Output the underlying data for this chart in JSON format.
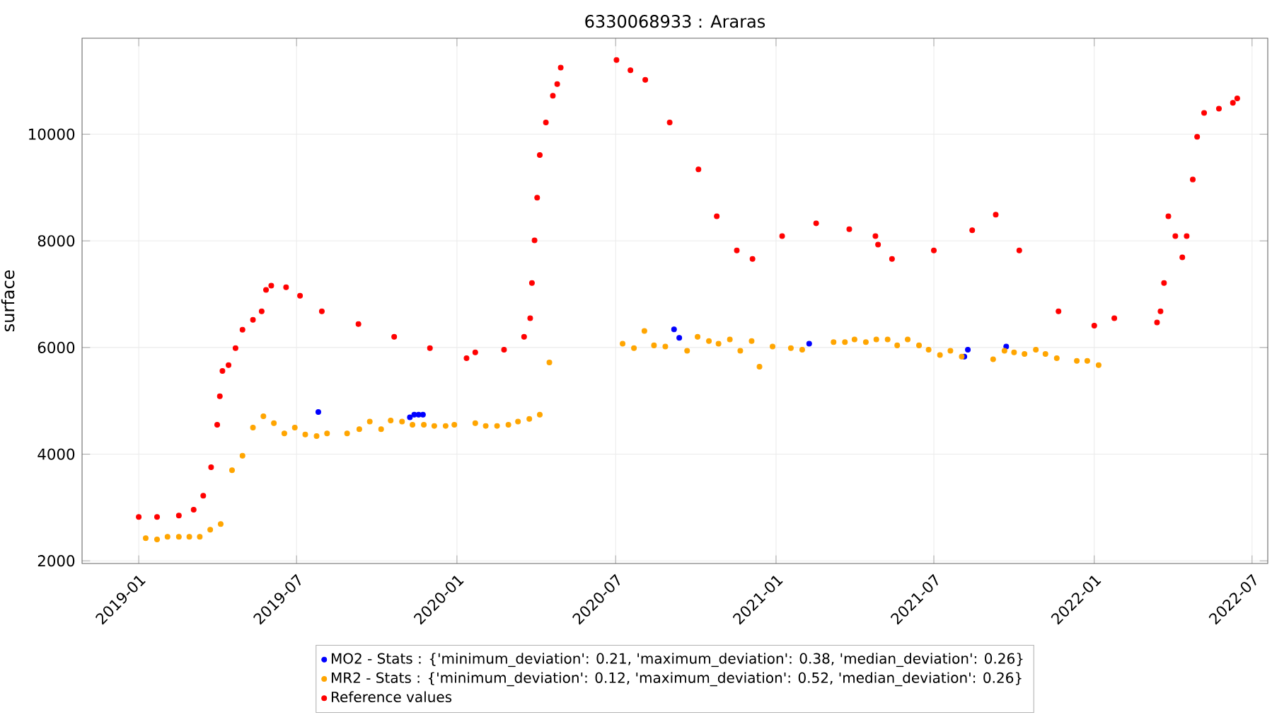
{
  "chart_data": {
    "type": "scatter",
    "title": "6330068933 : Araras",
    "ylabel": "surface",
    "xlim": [
      "2018-10-28",
      "2022-07-19"
    ],
    "ylim": [
      1950,
      11800
    ],
    "xticks": [
      "2019-01",
      "2019-07",
      "2020-01",
      "2020-07",
      "2021-01",
      "2021-07",
      "2022-01",
      "2022-07"
    ],
    "yticks": [
      2000,
      4000,
      6000,
      8000,
      10000
    ],
    "grid": true,
    "legend": "bottom",
    "marker": "circle",
    "series": [
      {
        "name": "MO2 - Stats : {'minimum_deviation': 0.21, 'maximum_deviation': 0.38, 'median_deviation': 0.26}",
        "color": "#0000ff",
        "x": [
          "2019-07-26",
          "2019-11-08",
          "2019-11-13",
          "2019-11-18",
          "2019-11-23",
          "2020-09-06",
          "2020-09-12",
          "2021-02-08",
          "2021-08-05",
          "2021-08-09",
          "2021-09-22"
        ],
        "values": [
          4790,
          4690,
          4740,
          4740,
          4740,
          6340,
          6180,
          6070,
          5830,
          5960,
          6020
        ]
      },
      {
        "name": "MR2 - Stats : {'minimum_deviation': 0.12, 'maximum_deviation': 0.52, 'median_deviation': 0.26}",
        "color": "#ffa500",
        "x": [
          "2019-01-09",
          "2019-01-22",
          "2019-02-03",
          "2019-02-16",
          "2019-02-28",
          "2019-03-12",
          "2019-03-24",
          "2019-04-05",
          "2019-04-18",
          "2019-04-30",
          "2019-05-12",
          "2019-05-24",
          "2019-06-05",
          "2019-06-17",
          "2019-06-29",
          "2019-07-11",
          "2019-07-24",
          "2019-08-05",
          "2019-08-28",
          "2019-09-11",
          "2019-09-23",
          "2019-10-06",
          "2019-10-17",
          "2019-10-30",
          "2019-11-11",
          "2019-11-24",
          "2019-12-06",
          "2019-12-19",
          "2019-12-29",
          "2020-01-22",
          "2020-02-03",
          "2020-02-16",
          "2020-02-29",
          "2020-03-11",
          "2020-03-24",
          "2020-04-05",
          "2020-04-16",
          "2020-07-09",
          "2020-07-22",
          "2020-08-03",
          "2020-08-14",
          "2020-08-27",
          "2020-09-21",
          "2020-10-03",
          "2020-10-16",
          "2020-10-27",
          "2020-11-09",
          "2020-11-21",
          "2020-12-04",
          "2020-12-13",
          "2020-12-28",
          "2021-01-18",
          "2021-01-31",
          "2021-03-08",
          "2021-03-21",
          "2021-04-01",
          "2021-04-14",
          "2021-04-26",
          "2021-05-09",
          "2021-05-20",
          "2021-06-01",
          "2021-06-14",
          "2021-06-25",
          "2021-07-08",
          "2021-07-20",
          "2021-08-02",
          "2021-09-07",
          "2021-09-20",
          "2021-10-01",
          "2021-10-13",
          "2021-10-26",
          "2021-11-06",
          "2021-11-19",
          "2021-12-12",
          "2021-12-24",
          "2022-01-06"
        ],
        "values": [
          2425,
          2400,
          2450,
          2450,
          2450,
          2450,
          2585,
          2690,
          3700,
          3970,
          4500,
          4710,
          4580,
          4390,
          4500,
          4370,
          4340,
          4390,
          4390,
          4470,
          4610,
          4470,
          4630,
          4610,
          4550,
          4550,
          4530,
          4530,
          4550,
          4580,
          4530,
          4530,
          4550,
          4610,
          4660,
          4740,
          5720,
          6070,
          5990,
          6310,
          6040,
          6020,
          5940,
          6200,
          6120,
          6070,
          6150,
          5940,
          6120,
          5640,
          6020,
          5990,
          5960,
          6100,
          6100,
          6150,
          6100,
          6150,
          6150,
          6040,
          6150,
          6040,
          5960,
          5860,
          5940,
          5830,
          5780,
          5940,
          5910,
          5880,
          5960,
          5880,
          5800,
          5750,
          5750,
          5670
        ]
      },
      {
        "name": "Reference values",
        "color": "#ff0000",
        "x": [
          "2019-01-01",
          "2019-01-22",
          "2019-02-16",
          "2019-03-05",
          "2019-03-16",
          "2019-03-25",
          "2019-04-01",
          "2019-04-04",
          "2019-04-07",
          "2019-04-14",
          "2019-04-22",
          "2019-04-30",
          "2019-05-12",
          "2019-05-22",
          "2019-05-27",
          "2019-06-02",
          "2019-06-19",
          "2019-07-05",
          "2019-07-30",
          "2019-09-10",
          "2019-10-21",
          "2019-12-01",
          "2020-01-12",
          "2020-01-22",
          "2020-02-24",
          "2020-03-18",
          "2020-03-25",
          "2020-03-27",
          "2020-03-30",
          "2020-04-02",
          "2020-04-05",
          "2020-04-12",
          "2020-04-20",
          "2020-04-25",
          "2020-04-29",
          "2020-07-02",
          "2020-07-18",
          "2020-08-04",
          "2020-09-01",
          "2020-10-04",
          "2020-10-25",
          "2020-11-17",
          "2020-12-05",
          "2021-01-08",
          "2021-02-16",
          "2021-03-26",
          "2021-04-25",
          "2021-04-28",
          "2021-05-14",
          "2021-07-01",
          "2021-08-14",
          "2021-09-10",
          "2021-10-07",
          "2021-11-21",
          "2022-01-01",
          "2022-01-24",
          "2022-03-14",
          "2022-03-18",
          "2022-03-22",
          "2022-03-27",
          "2022-04-04",
          "2022-04-12",
          "2022-04-17",
          "2022-04-24",
          "2022-04-29",
          "2022-05-07",
          "2022-05-24",
          "2022-06-09",
          "2022-06-14"
        ],
        "values": [
          2824,
          2824,
          2850,
          2960,
          3220,
          3755,
          4550,
          5085,
          5560,
          5670,
          5990,
          6335,
          6520,
          6680,
          7080,
          7160,
          7130,
          6970,
          6680,
          6440,
          6200,
          5990,
          5800,
          5910,
          5960,
          6200,
          6550,
          7210,
          8010,
          8810,
          9610,
          10220,
          10720,
          10940,
          11250,
          11390,
          11200,
          11020,
          10220,
          9340,
          8460,
          7820,
          7660,
          8090,
          8330,
          8220,
          8090,
          7930,
          7660,
          7820,
          8200,
          8490,
          7820,
          6680,
          6410,
          6550,
          6470,
          6680,
          7210,
          8460,
          8090,
          7690,
          8090,
          9150,
          9950,
          10400,
          10480,
          10590,
          10670
        ]
      }
    ]
  }
}
